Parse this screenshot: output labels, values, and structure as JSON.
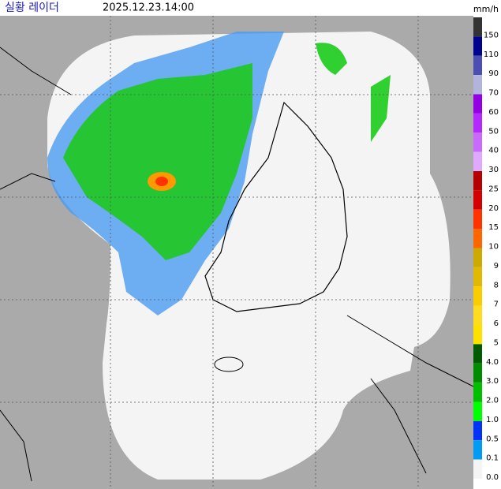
{
  "header": {
    "title": "실황 레이더",
    "time": "2025.12.23.14:00"
  },
  "legend": {
    "unit": "mm/h",
    "items": [
      {
        "label": "150",
        "color": "#333333"
      },
      {
        "label": "110",
        "color": "#000390"
      },
      {
        "label": "90",
        "color": "#4c4eb1"
      },
      {
        "label": "70",
        "color": "#b3b4de"
      },
      {
        "label": "60",
        "color": "#9300e4"
      },
      {
        "label": "50",
        "color": "#b329ff"
      },
      {
        "label": "40",
        "color": "#c969ff"
      },
      {
        "label": "30",
        "color": "#e0a9ff"
      },
      {
        "label": "25",
        "color": "#b40000"
      },
      {
        "label": "20",
        "color": "#d20000"
      },
      {
        "label": "15",
        "color": "#ff3300"
      },
      {
        "label": "10",
        "color": "#ff6600"
      },
      {
        "label": "9",
        "color": "#ccaa00"
      },
      {
        "label": "8",
        "color": "#e0b900"
      },
      {
        "label": "7",
        "color": "#f9cd00"
      },
      {
        "label": "6",
        "color": "#ffdc1f"
      },
      {
        "label": "5",
        "color": "#ffe100"
      },
      {
        "label": "4.0",
        "color": "#005a00"
      },
      {
        "label": "3.0",
        "color": "#008c00"
      },
      {
        "label": "2.0",
        "color": "#00be00"
      },
      {
        "label": "1.0",
        "color": "#00ff00"
      },
      {
        "label": "0.5",
        "color": "#0033f5"
      },
      {
        "label": "0.1",
        "color": "#009bf5"
      },
      {
        "label": "0.0",
        "color": "#f4f4f4"
      }
    ]
  }
}
